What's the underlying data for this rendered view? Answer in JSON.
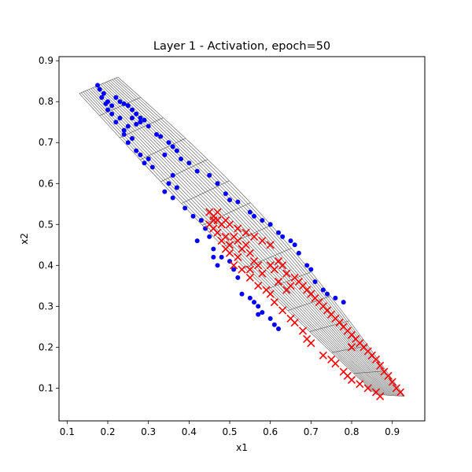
{
  "chart_data": {
    "type": "scatter",
    "title": "Layer 1 - Activation, epoch=50",
    "xlabel": "x1",
    "ylabel": "x2",
    "xlim": [
      0.08,
      0.98
    ],
    "ylim": [
      0.02,
      0.91
    ],
    "xticks": [
      "0.1",
      "0.2",
      "0.3",
      "0.4",
      "0.5",
      "0.6",
      "0.7",
      "0.8",
      "0.9"
    ],
    "yticks": [
      "0.1",
      "0.2",
      "0.3",
      "0.4",
      "0.5",
      "0.6",
      "0.7",
      "0.8",
      "0.9"
    ],
    "grid": false,
    "legend": "none",
    "mesh": {
      "color": "#555555",
      "corners": {
        "top_left": [
          0.13,
          0.82
        ],
        "top_right": [
          0.225,
          0.86
        ],
        "bottom_left": [
          0.86,
          0.085
        ],
        "bottom_right": [
          0.93,
          0.08
        ]
      }
    },
    "series": [
      {
        "marker": "dot",
        "color": "#0000ff",
        "points": [
          [
            0.175,
            0.84
          ],
          [
            0.18,
            0.83
          ],
          [
            0.19,
            0.82
          ],
          [
            0.185,
            0.81
          ],
          [
            0.2,
            0.8
          ],
          [
            0.21,
            0.79
          ],
          [
            0.195,
            0.795
          ],
          [
            0.22,
            0.81
          ],
          [
            0.23,
            0.8
          ],
          [
            0.24,
            0.795
          ],
          [
            0.25,
            0.79
          ],
          [
            0.26,
            0.78
          ],
          [
            0.27,
            0.77
          ],
          [
            0.28,
            0.76
          ],
          [
            0.29,
            0.755
          ],
          [
            0.3,
            0.74
          ],
          [
            0.27,
            0.745
          ],
          [
            0.25,
            0.74
          ],
          [
            0.23,
            0.76
          ],
          [
            0.22,
            0.75
          ],
          [
            0.24,
            0.72
          ],
          [
            0.26,
            0.71
          ],
          [
            0.25,
            0.7
          ],
          [
            0.27,
            0.68
          ],
          [
            0.28,
            0.67
          ],
          [
            0.3,
            0.66
          ],
          [
            0.29,
            0.65
          ],
          [
            0.31,
            0.64
          ],
          [
            0.32,
            0.72
          ],
          [
            0.33,
            0.715
          ],
          [
            0.35,
            0.7
          ],
          [
            0.36,
            0.69
          ],
          [
            0.37,
            0.68
          ],
          [
            0.34,
            0.67
          ],
          [
            0.38,
            0.66
          ],
          [
            0.4,
            0.65
          ],
          [
            0.36,
            0.62
          ],
          [
            0.35,
            0.6
          ],
          [
            0.37,
            0.59
          ],
          [
            0.34,
            0.58
          ],
          [
            0.36,
            0.565
          ],
          [
            0.39,
            0.54
          ],
          [
            0.41,
            0.52
          ],
          [
            0.43,
            0.51
          ],
          [
            0.44,
            0.49
          ],
          [
            0.45,
            0.47
          ],
          [
            0.42,
            0.46
          ],
          [
            0.46,
            0.44
          ],
          [
            0.48,
            0.42
          ],
          [
            0.5,
            0.41
          ],
          [
            0.51,
            0.39
          ],
          [
            0.47,
            0.4
          ],
          [
            0.46,
            0.42
          ],
          [
            0.52,
            0.37
          ],
          [
            0.53,
            0.33
          ],
          [
            0.55,
            0.32
          ],
          [
            0.56,
            0.31
          ],
          [
            0.57,
            0.3
          ],
          [
            0.58,
            0.285
          ],
          [
            0.6,
            0.27
          ],
          [
            0.61,
            0.255
          ],
          [
            0.62,
            0.245
          ],
          [
            0.57,
            0.28
          ],
          [
            0.42,
            0.63
          ],
          [
            0.45,
            0.62
          ],
          [
            0.47,
            0.6
          ],
          [
            0.49,
            0.575
          ],
          [
            0.5,
            0.56
          ],
          [
            0.52,
            0.555
          ],
          [
            0.55,
            0.53
          ],
          [
            0.56,
            0.52
          ],
          [
            0.58,
            0.51
          ],
          [
            0.6,
            0.5
          ],
          [
            0.62,
            0.48
          ],
          [
            0.63,
            0.47
          ],
          [
            0.65,
            0.46
          ],
          [
            0.66,
            0.45
          ],
          [
            0.67,
            0.43
          ],
          [
            0.69,
            0.4
          ],
          [
            0.7,
            0.39
          ],
          [
            0.71,
            0.36
          ],
          [
            0.73,
            0.34
          ],
          [
            0.74,
            0.33
          ],
          [
            0.76,
            0.32
          ],
          [
            0.78,
            0.31
          ],
          [
            0.2,
            0.78
          ],
          [
            0.21,
            0.77
          ],
          [
            0.26,
            0.76
          ],
          [
            0.28,
            0.75
          ],
          [
            0.24,
            0.73
          ]
        ]
      },
      {
        "marker": "x",
        "color": "#ff0000",
        "points": [
          [
            0.45,
            0.53
          ],
          [
            0.46,
            0.52
          ],
          [
            0.47,
            0.51
          ],
          [
            0.45,
            0.5
          ],
          [
            0.46,
            0.49
          ],
          [
            0.48,
            0.5
          ],
          [
            0.49,
            0.51
          ],
          [
            0.5,
            0.5
          ],
          [
            0.47,
            0.48
          ],
          [
            0.49,
            0.47
          ],
          [
            0.51,
            0.47
          ],
          [
            0.52,
            0.46
          ],
          [
            0.5,
            0.45
          ],
          [
            0.53,
            0.44
          ],
          [
            0.54,
            0.45
          ],
          [
            0.55,
            0.43
          ],
          [
            0.52,
            0.42
          ],
          [
            0.56,
            0.41
          ],
          [
            0.57,
            0.4
          ],
          [
            0.55,
            0.39
          ],
          [
            0.58,
            0.38
          ],
          [
            0.6,
            0.4
          ],
          [
            0.61,
            0.39
          ],
          [
            0.62,
            0.41
          ],
          [
            0.63,
            0.4
          ],
          [
            0.64,
            0.38
          ],
          [
            0.66,
            0.37
          ],
          [
            0.67,
            0.36
          ],
          [
            0.68,
            0.35
          ],
          [
            0.69,
            0.34
          ],
          [
            0.7,
            0.33
          ],
          [
            0.72,
            0.31
          ],
          [
            0.73,
            0.3
          ],
          [
            0.75,
            0.28
          ],
          [
            0.76,
            0.27
          ],
          [
            0.77,
            0.26
          ],
          [
            0.79,
            0.24
          ],
          [
            0.8,
            0.23
          ],
          [
            0.81,
            0.22
          ],
          [
            0.82,
            0.21
          ],
          [
            0.83,
            0.2
          ],
          [
            0.84,
            0.19
          ],
          [
            0.85,
            0.18
          ],
          [
            0.86,
            0.17
          ],
          [
            0.87,
            0.155
          ],
          [
            0.88,
            0.14
          ],
          [
            0.89,
            0.13
          ],
          [
            0.9,
            0.115
          ],
          [
            0.91,
            0.1
          ],
          [
            0.92,
            0.09
          ],
          [
            0.73,
            0.18
          ],
          [
            0.75,
            0.17
          ],
          [
            0.76,
            0.16
          ],
          [
            0.78,
            0.14
          ],
          [
            0.79,
            0.13
          ],
          [
            0.8,
            0.12
          ],
          [
            0.82,
            0.11
          ],
          [
            0.84,
            0.1
          ],
          [
            0.86,
            0.09
          ],
          [
            0.87,
            0.08
          ],
          [
            0.6,
            0.33
          ],
          [
            0.61,
            0.31
          ],
          [
            0.63,
            0.29
          ],
          [
            0.65,
            0.27
          ],
          [
            0.66,
            0.26
          ],
          [
            0.68,
            0.24
          ],
          [
            0.69,
            0.22
          ],
          [
            0.7,
            0.21
          ],
          [
            0.52,
            0.49
          ],
          [
            0.54,
            0.48
          ],
          [
            0.56,
            0.47
          ],
          [
            0.58,
            0.46
          ],
          [
            0.6,
            0.45
          ],
          [
            0.51,
            0.4
          ],
          [
            0.53,
            0.39
          ],
          [
            0.55,
            0.37
          ],
          [
            0.57,
            0.35
          ],
          [
            0.59,
            0.34
          ],
          [
            0.62,
            0.36
          ],
          [
            0.64,
            0.34
          ],
          [
            0.48,
            0.46
          ],
          [
            0.5,
            0.43
          ],
          [
            0.49,
            0.44
          ],
          [
            0.46,
            0.51
          ],
          [
            0.47,
            0.53
          ],
          [
            0.65,
            0.35
          ],
          [
            0.71,
            0.32
          ],
          [
            0.74,
            0.29
          ],
          [
            0.78,
            0.25
          ],
          [
            0.8,
            0.2
          ]
        ]
      }
    ]
  }
}
